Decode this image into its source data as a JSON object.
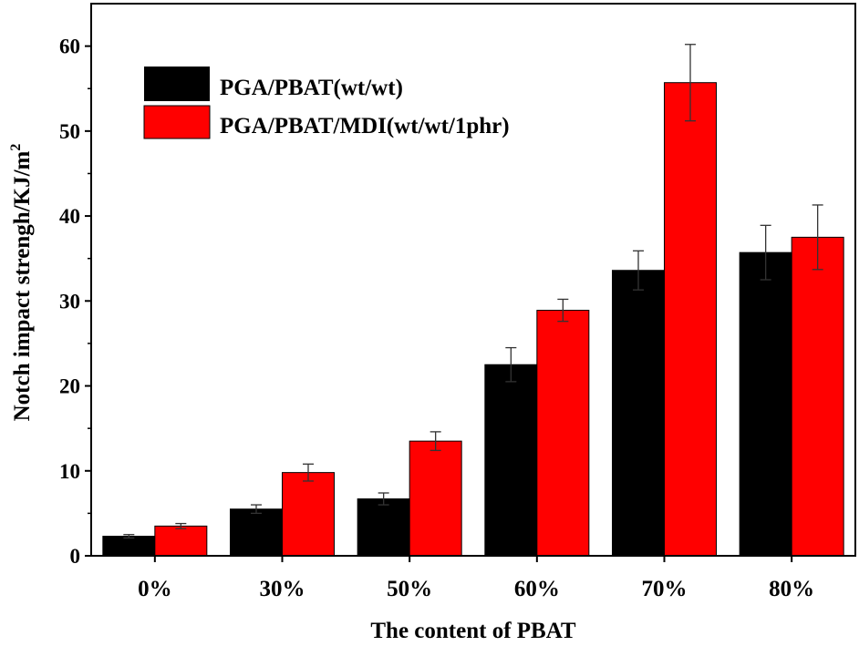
{
  "chart_data": {
    "type": "bar",
    "title": "",
    "xlabel": "The content of PBAT",
    "ylabel": "Notch impact strengh/KJ/m",
    "ylabel_sup": "2",
    "ylim": [
      0,
      65
    ],
    "yticks": [
      0,
      10,
      20,
      30,
      40,
      50,
      60
    ],
    "grid": false,
    "legend_position": "top-left",
    "categories": [
      "0%",
      "30%",
      "50%",
      "60%",
      "70%",
      "80%"
    ],
    "series": [
      {
        "name": "PGA/PBAT(wt/wt)",
        "color": "#000000",
        "values": [
          2.3,
          5.5,
          6.7,
          22.5,
          33.6,
          35.7
        ],
        "errors": [
          0.2,
          0.5,
          0.7,
          2.0,
          2.3,
          3.2
        ]
      },
      {
        "name": "PGA/PBAT/MDI(wt/wt/1phr)",
        "color": "#ff0000",
        "values": [
          3.5,
          9.8,
          13.5,
          28.9,
          55.7,
          37.5
        ],
        "errors": [
          0.3,
          1.0,
          1.1,
          1.3,
          4.5,
          3.8
        ]
      }
    ]
  }
}
